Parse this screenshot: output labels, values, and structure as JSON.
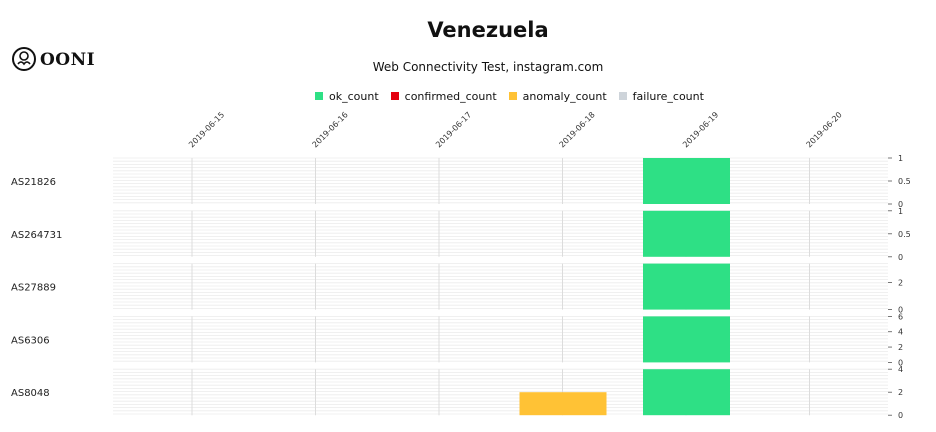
{
  "chart_data": {
    "type": "heatmap",
    "title": "Venezuela",
    "subtitle": "Web Connectivity Test, instagram.com",
    "legend": [
      {
        "name": "ok_count",
        "color": "#2ee085"
      },
      {
        "name": "confirmed_count",
        "color": "#e4000f"
      },
      {
        "name": "anomaly_count",
        "color": "#ffc235"
      },
      {
        "name": "failure_count",
        "color": "#ced4da"
      }
    ],
    "x_dates": [
      "2019-06-15",
      "2019-06-16",
      "2019-06-17",
      "2019-06-18",
      "2019-06-19",
      "2019-06-20"
    ],
    "rows": [
      {
        "asn": "AS21826",
        "y_ticks": [
          "0",
          "0.5",
          "1"
        ],
        "ymax": 1,
        "bars": [
          {
            "start": "2019-06-19",
            "type": "ok_count",
            "value": 1
          }
        ]
      },
      {
        "asn": "AS264731",
        "y_ticks": [
          "0",
          "0.5",
          "1"
        ],
        "ymax": 1,
        "bars": [
          {
            "start": "2019-06-19",
            "type": "ok_count",
            "value": 1
          }
        ]
      },
      {
        "asn": "AS27889",
        "y_ticks": [
          "0",
          "2"
        ],
        "ymax": 3.4,
        "bars": [
          {
            "start": "2019-06-19",
            "type": "ok_count",
            "value": 3.4
          }
        ]
      },
      {
        "asn": "AS6306",
        "y_ticks": [
          "0",
          "2",
          "4",
          "6"
        ],
        "ymax": 6,
        "bars": [
          {
            "start": "2019-06-19",
            "type": "ok_count",
            "value": 6
          }
        ]
      },
      {
        "asn": "AS8048",
        "y_ticks": [
          "0",
          "2",
          "4"
        ],
        "ymax": 4,
        "bars": [
          {
            "start": "2019-06-18",
            "type": "anomaly_count",
            "value": 2
          },
          {
            "start": "2019-06-19",
            "type": "ok_count",
            "value": 4
          }
        ]
      }
    ]
  },
  "branding": {
    "logo_text": "OONI"
  }
}
